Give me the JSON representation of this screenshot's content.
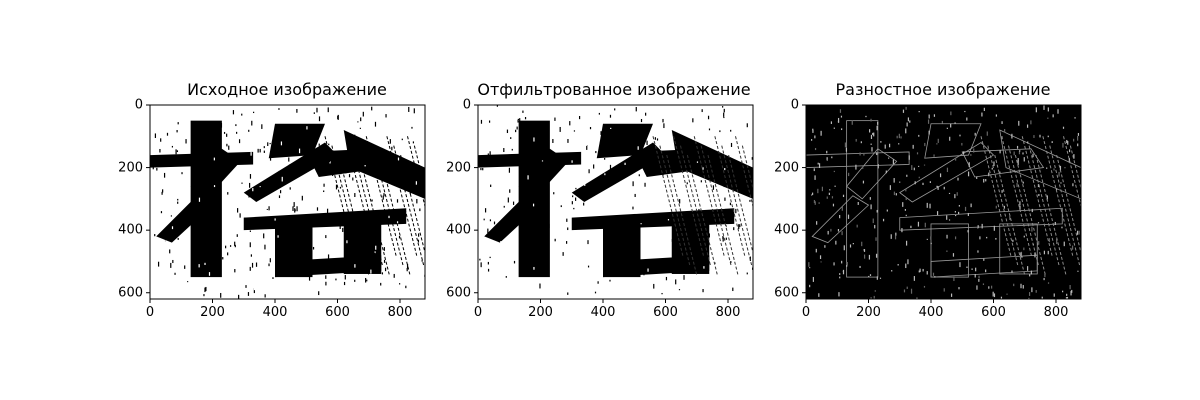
{
  "chart_data": [
    {
      "type": "image",
      "title": "Исходное изображение",
      "content": "binary text image with large brush character, white background",
      "xlim": [
        0,
        880
      ],
      "ylim": [
        620,
        0
      ],
      "xticks": [
        0,
        200,
        400,
        600,
        800
      ],
      "yticks": [
        0,
        200,
        400,
        600
      ],
      "colors": {
        "background": "#ffffff",
        "ink": "#000000"
      }
    },
    {
      "type": "image",
      "title": "Отфильтрованное изображение",
      "content": "filtered binary text image, white background",
      "xlim": [
        0,
        880
      ],
      "ylim": [
        620,
        0
      ],
      "xticks": [
        0,
        200,
        400,
        600,
        800
      ],
      "yticks": [
        0,
        200,
        400,
        600
      ],
      "colors": {
        "background": "#ffffff",
        "ink": "#000000"
      }
    },
    {
      "type": "image",
      "title": "Разностное изображение",
      "content": "difference image, black background with gray edge outlines",
      "xlim": [
        0,
        880
      ],
      "ylim": [
        620,
        0
      ],
      "xticks": [
        0,
        200,
        400,
        600,
        800
      ],
      "yticks": [
        0,
        200,
        400,
        600
      ],
      "colors": {
        "background": "#000000",
        "ink": "#9a9a9a"
      }
    }
  ]
}
